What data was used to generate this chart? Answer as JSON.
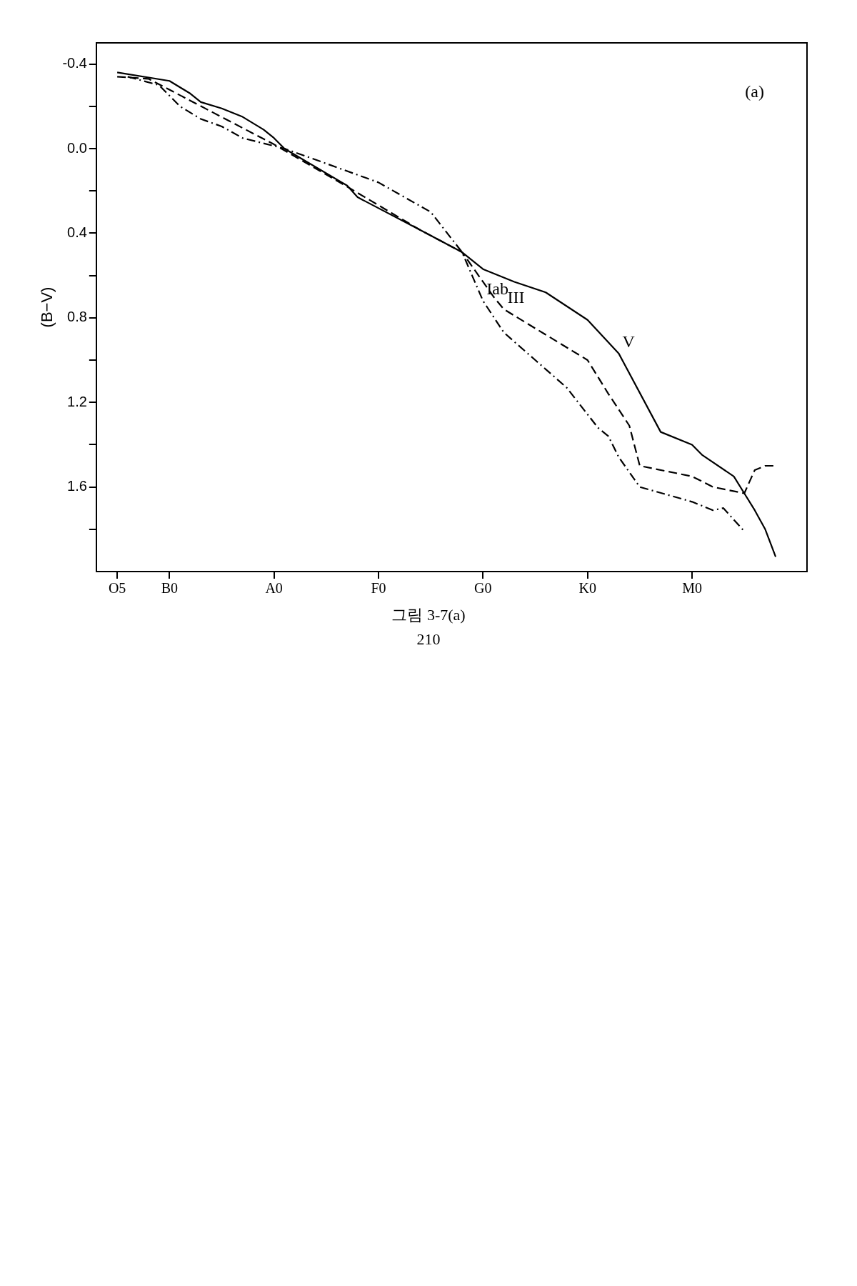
{
  "chart_data": {
    "type": "line",
    "ylabel": "(B−V)",
    "categories": [
      null,
      null,
      "O5",
      null,
      null,
      null,
      null,
      "B0",
      null,
      null,
      null,
      null,
      null,
      null,
      null,
      null,
      null,
      "A0",
      null,
      null,
      null,
      null,
      null,
      null,
      null,
      null,
      null,
      "F0",
      null,
      null,
      null,
      null,
      null,
      null,
      null,
      null,
      null,
      "G0",
      null,
      null,
      null,
      null,
      null,
      null,
      null,
      null,
      null,
      "K0",
      null,
      null,
      null,
      null,
      null,
      null,
      null,
      null,
      null,
      "M0",
      null,
      null,
      null,
      null,
      null,
      null,
      null,
      null,
      null,
      null,
      null
    ],
    "ylim": [
      2.0,
      -0.5
    ],
    "yticks": [
      -0.4,
      {
        "value": -0.2,
        "label": null
      },
      {
        "value": 0,
        "label": "0.0"
      },
      {
        "value": 0.2,
        "label": null
      },
      0.4,
      {
        "value": 0.6,
        "label": null
      },
      0.8,
      {
        "value": 1.0,
        "label": null
      },
      1.2,
      {
        "value": 1.4,
        "label": null
      },
      1.6,
      {
        "value": 1.8,
        "label": null
      }
    ],
    "grid": false,
    "legend": false,
    "marker": "none",
    "series": [
      {
        "name": "V",
        "color": "#000000",
        "line_style": "solid",
        "values": [
          null,
          null,
          -0.36,
          null,
          null,
          null,
          null,
          -0.32,
          null,
          -0.26,
          -0.22,
          null,
          -0.19,
          null,
          -0.15,
          null,
          -0.09,
          -0.05,
          0.0,
          null,
          null,
          null,
          null,
          null,
          0.175,
          0.23,
          null,
          null,
          null,
          null,
          null,
          0.385,
          null,
          null,
          null,
          0.49,
          null,
          0.57,
          null,
          null,
          0.63,
          null,
          null,
          0.68,
          null,
          0.745,
          null,
          0.81,
          null,
          null,
          0.97,
          null,
          null,
          null,
          1.34,
          null,
          null,
          1.4,
          1.45,
          null,
          null,
          1.55,
          1.63,
          1.71,
          1.8,
          1.93,
          null,
          null,
          null
        ]
      },
      {
        "name": "III",
        "color": "#000000",
        "line_style": "dashed",
        "values": [
          null,
          null,
          -0.34,
          null,
          null,
          -0.33,
          null,
          null,
          null,
          null,
          null,
          null,
          null,
          null,
          null,
          null,
          null,
          -0.02,
          null,
          null,
          null,
          null,
          null,
          null,
          0.18,
          null,
          null,
          null,
          null,
          null,
          null,
          0.385,
          null,
          null,
          null,
          0.49,
          null,
          null,
          0.7,
          0.76,
          null,
          null,
          null,
          null,
          null,
          null,
          null,
          1.0,
          null,
          1.16,
          null,
          1.31,
          1.5,
          null,
          null,
          null,
          null,
          1.55,
          null,
          1.6,
          null,
          null,
          1.63,
          1.52,
          1.5,
          1.5,
          null,
          null,
          null
        ]
      },
      {
        "name": "Iab",
        "color": "#000000",
        "line_style": "dashdot",
        "values": [
          null,
          null,
          null,
          -0.34,
          null,
          null,
          -0.3,
          null,
          -0.2,
          null,
          -0.14,
          null,
          -0.105,
          null,
          -0.05,
          null,
          null,
          null,
          0.0,
          null,
          0.035,
          null,
          null,
          null,
          null,
          null,
          null,
          0.16,
          null,
          null,
          null,
          null,
          0.3,
          null,
          null,
          0.49,
          null,
          0.72,
          null,
          0.87,
          null,
          null,
          1.0,
          null,
          null,
          1.13,
          null,
          null,
          1.32,
          1.36,
          1.46,
          null,
          1.6,
          null,
          null,
          null,
          null,
          1.67,
          null,
          1.71,
          1.7,
          null,
          1.81,
          null,
          null,
          null,
          null,
          null,
          null
        ]
      }
    ],
    "annotations": [
      "(a)",
      "그림 3-7(a)",
      "210"
    ]
  }
}
